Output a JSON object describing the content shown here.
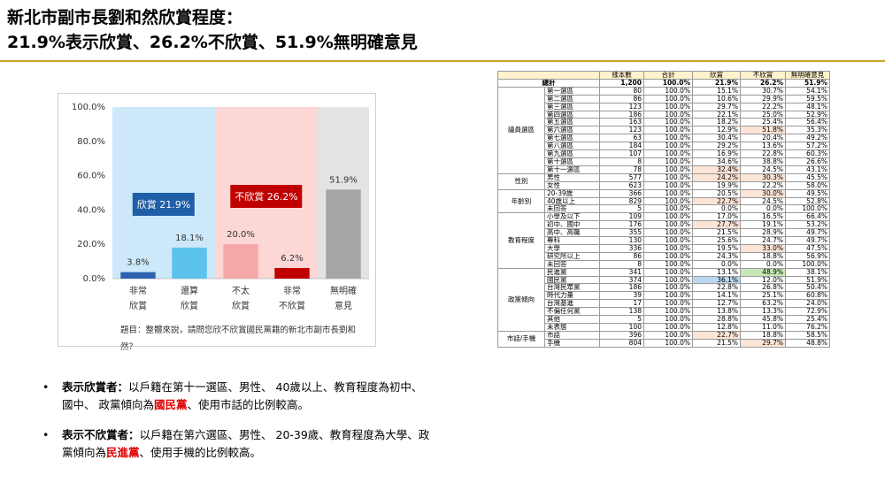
{
  "header": {
    "title": [
      "新北市副市長劉和然欣賞程度：",
      "21.9%表示欣賞、26.2%不欣賞、51.9%無明確意見"
    ]
  },
  "chart_data": {
    "type": "bar",
    "categories": [
      "非常\n欣賞",
      "還算\n欣賞",
      "不太\n欣賞",
      "非常\n不欣賞",
      "無明確\n意見"
    ],
    "values": [
      3.8,
      18.1,
      20.0,
      6.2,
      51.9
    ],
    "value_labels": [
      "3.8%",
      "18.1%",
      "20.0%",
      "6.2%",
      "51.9%"
    ],
    "colors": [
      "#2e62b0",
      "#5bc3ee",
      "#f6a8a8",
      "#c00000",
      "#a6a6a6"
    ],
    "background_colors": [
      "#cde9f9",
      "#cde9f9",
      "#fdd6d6",
      "#fdd6d6",
      "#e3e3e3"
    ],
    "ylim": [
      0,
      100
    ],
    "yticks": [
      {
        "value": 0,
        "label": "0.0%"
      },
      {
        "value": 20,
        "label": "20.0%"
      },
      {
        "value": 40,
        "label": "40.0%"
      },
      {
        "value": 60,
        "label": "60.0%"
      },
      {
        "value": 80,
        "label": "80.0%"
      },
      {
        "value": 100,
        "label": "100.0%"
      }
    ],
    "grid": false,
    "annotations": [
      {
        "text": "欣賞 21.9%",
        "color": "#1f5fa8"
      },
      {
        "text": "不欣賞 26.2%",
        "color": "#c00000"
      }
    ],
    "note": "題目：整體來說，請問您欣不欣賞國民黨籍的新北市副市長劉和然？"
  },
  "bullets": [
    {
      "lead": "表示欣賞者：",
      "before": "以戶籍在第十一選區、男性、 40歲以上、教育程度為初中、國中、 政黨傾向為",
      "highlight": "國民黨",
      "after": "、使用市話的比例較高。"
    },
    {
      "lead": "表示不欣賞者：",
      "before": "以戶籍在第六選區、男性、 20-39歲、教育程度為大學、政黨傾向為",
      "highlight": "民進黨",
      "after": "、使用手機的比例較高。"
    }
  ],
  "table": {
    "headers": [
      "樣本數",
      "合計",
      "欣賞",
      "不欣賞",
      "無明確意見"
    ],
    "total": {
      "label": "總計",
      "cells": [
        "1,200",
        "100.0%",
        "21.9%",
        "26.2%",
        "51.9%"
      ]
    },
    "groups": [
      {
        "label": "議員選區",
        "rows": [
          {
            "label": "第一選區",
            "cells": [
              "80",
              "100.0%",
              "15.1%",
              "30.7%",
              "54.1%"
            ]
          },
          {
            "label": "第二選區",
            "cells": [
              "86",
              "100.0%",
              "10.6%",
              "29.9%",
              "59.5%"
            ]
          },
          {
            "label": "第三選區",
            "cells": [
              "123",
              "100.0%",
              "29.7%",
              "22.2%",
              "48.1%"
            ]
          },
          {
            "label": "第四選區",
            "cells": [
              "186",
              "100.0%",
              "22.1%",
              "25.0%",
              "52.9%"
            ]
          },
          {
            "label": "第五選區",
            "cells": [
              "163",
              "100.0%",
              "18.2%",
              "25.4%",
              "56.4%"
            ]
          },
          {
            "label": "第六選區",
            "cells": [
              "123",
              "100.0%",
              "12.9%",
              {
                "text": "51.8%",
                "shade": "#fce4d6"
              },
              "35.3%"
            ]
          },
          {
            "label": "第七選區",
            "cells": [
              "63",
              "100.0%",
              "30.4%",
              "20.4%",
              "49.2%"
            ]
          },
          {
            "label": "第八選區",
            "cells": [
              "184",
              "100.0%",
              "29.2%",
              "13.6%",
              "57.2%"
            ]
          },
          {
            "label": "第九選區",
            "cells": [
              "107",
              "100.0%",
              "16.9%",
              "22.8%",
              "60.3%"
            ]
          },
          {
            "label": "第十選區",
            "cells": [
              "8",
              "100.0%",
              "34.6%",
              "38.8%",
              "26.6%"
            ]
          },
          {
            "label": "第十一選區",
            "cells": [
              "78",
              "100.0%",
              {
                "text": "32.4%",
                "shade": "#fce4d6"
              },
              "24.5%",
              "43.1%"
            ]
          }
        ]
      },
      {
        "label": "性別",
        "rows": [
          {
            "label": "男性",
            "cells": [
              "577",
              "100.0%",
              {
                "text": "24.2%",
                "shade": "#fce4d6"
              },
              {
                "text": "30.3%",
                "shade": "#fce4d6"
              },
              "45.5%"
            ]
          },
          {
            "label": "女性",
            "cells": [
              "623",
              "100.0%",
              "19.9%",
              "22.2%",
              "58.0%"
            ]
          }
        ]
      },
      {
        "label": "年齡別",
        "rows": [
          {
            "label": "20-39歲",
            "cells": [
              "366",
              "100.0%",
              "20.5%",
              {
                "text": "30.0%",
                "shade": "#fce4d6"
              },
              "49.5%"
            ]
          },
          {
            "label": "40歲以上",
            "cells": [
              "829",
              "100.0%",
              {
                "text": "22.7%",
                "shade": "#fce4d6"
              },
              "24.5%",
              "52.8%"
            ]
          },
          {
            "label": "未回答",
            "cells": [
              "5",
              "100.0%",
              "0.0%",
              "0.0%",
              "100.0%"
            ]
          }
        ]
      },
      {
        "label": "教育程度",
        "rows": [
          {
            "label": "小學及以下",
            "cells": [
              "109",
              "100.0%",
              "17.0%",
              "16.5%",
              "66.4%"
            ]
          },
          {
            "label": "初中、國中",
            "cells": [
              "176",
              "100.0%",
              {
                "text": "27.7%",
                "shade": "#fce4d6"
              },
              "19.1%",
              "53.2%"
            ]
          },
          {
            "label": "高中、高職",
            "cells": [
              "355",
              "100.0%",
              "21.5%",
              "28.9%",
              "49.7%"
            ]
          },
          {
            "label": "專科",
            "cells": [
              "130",
              "100.0%",
              "25.6%",
              "24.7%",
              "49.7%"
            ]
          },
          {
            "label": "大學",
            "cells": [
              "336",
              "100.0%",
              "19.5%",
              {
                "text": "33.0%",
                "shade": "#fce4d6"
              },
              "47.5%"
            ]
          },
          {
            "label": "研究所以上",
            "cells": [
              "86",
              "100.0%",
              "24.3%",
              "18.8%",
              "56.9%"
            ]
          },
          {
            "label": "未回答",
            "cells": [
              "8",
              "100.0%",
              "0.0%",
              "0.0%",
              "100.0%"
            ]
          }
        ]
      },
      {
        "label": "政黨傾向",
        "rows": [
          {
            "label": "民進黨",
            "cells": [
              "341",
              "100.0%",
              "13.1%",
              {
                "text": "48.9%",
                "shade": "#c6e9b4"
              },
              "38.1%"
            ]
          },
          {
            "label": "國民黨",
            "cells": [
              "374",
              "100.0%",
              {
                "text": "36.1%",
                "shade": "#bdd7ee"
              },
              "12.0%",
              "51.9%"
            ]
          },
          {
            "label": "台灣民眾黨",
            "cells": [
              "186",
              "100.0%",
              "22.8%",
              "26.8%",
              "50.4%"
            ]
          },
          {
            "label": "時代力量",
            "cells": [
              "39",
              "100.0%",
              "14.1%",
              "25.1%",
              "60.8%"
            ]
          },
          {
            "label": "台灣基進",
            "cells": [
              "17",
              "100.0%",
              "12.7%",
              "63.2%",
              "24.0%"
            ]
          },
          {
            "label": "不偏任何黨",
            "cells": [
              "138",
              "100.0%",
              "13.8%",
              "13.3%",
              "72.9%"
            ]
          },
          {
            "label": "其他",
            "cells": [
              "5",
              "100.0%",
              "28.8%",
              "45.8%",
              "25.4%"
            ]
          },
          {
            "label": "未表態",
            "cells": [
              "100",
              "100.0%",
              "12.8%",
              "11.0%",
              "76.2%"
            ]
          }
        ]
      },
      {
        "label": "市話/手機",
        "rows": [
          {
            "label": "市話",
            "cells": [
              "396",
              "100.0%",
              {
                "text": "22.7%",
                "shade": "#fce4d6"
              },
              "18.8%",
              "58.5%"
            ]
          },
          {
            "label": "手機",
            "cells": [
              "804",
              "100.0%",
              "21.5%",
              {
                "text": "29.7%",
                "shade": "#fce4d6"
              },
              "48.8%"
            ]
          }
        ]
      }
    ]
  }
}
